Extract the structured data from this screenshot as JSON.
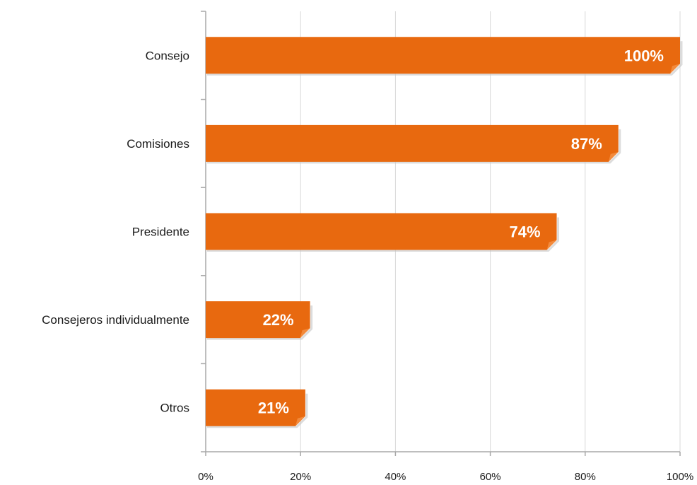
{
  "chart_data": {
    "type": "bar",
    "orientation": "horizontal",
    "categories": [
      "Consejo",
      "Comisiones",
      "Presidente",
      "Consejeros individualmente",
      "Otros"
    ],
    "values": [
      100,
      87,
      74,
      22,
      21
    ],
    "value_labels": [
      "100%",
      "87%",
      "74%",
      "22%",
      "21%"
    ],
    "x_ticks": [
      0,
      20,
      40,
      60,
      80,
      100
    ],
    "x_tick_labels": [
      "0%",
      "20%",
      "40%",
      "60%",
      "80%",
      "100%"
    ],
    "xlim": [
      0,
      100
    ],
    "title": "",
    "xlabel": "",
    "ylabel": "",
    "grid": "vertical",
    "legend": "none"
  },
  "colors": {
    "bar": "#E8690F",
    "bar_shadow": "#C4C4C4",
    "grid": "#D9D9D9",
    "axis": "#A8A8A8"
  }
}
